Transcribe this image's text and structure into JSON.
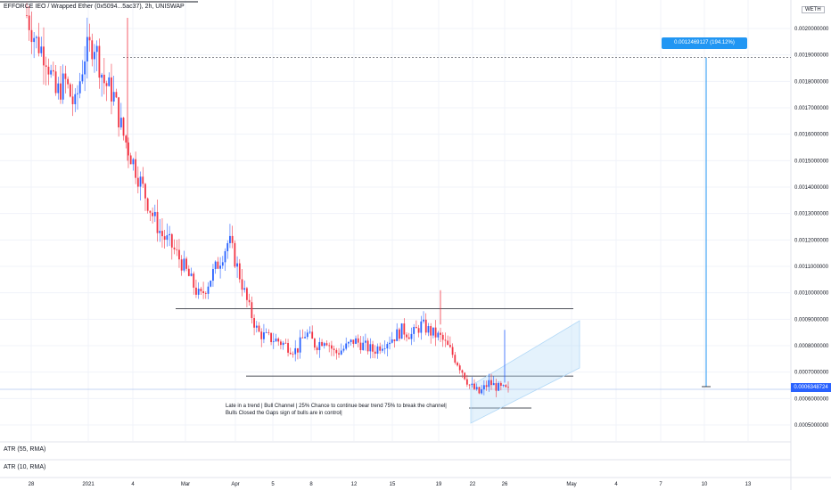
{
  "header": {
    "title": "EFFORCE IEO / Wrapped Ether (0x5094...5ac37), 2h, UNISWAP"
  },
  "price_axis": {
    "currency_badge": "WETH",
    "ticks": [
      "0.0020000000",
      "0.0019000000",
      "0.0018000000",
      "0.0017000000",
      "0.0016000000",
      "0.0015000000",
      "0.0014000000",
      "0.0013000000",
      "0.0012000000",
      "0.0011000000",
      "0.0010000000",
      "0.0009000000",
      "0.0008000000",
      "0.0007000000",
      "0.0006000000",
      "0.0005000000"
    ]
  },
  "time_axis": {
    "ticks": [
      "28",
      "2021",
      "4",
      "Mar",
      "Apr",
      "5",
      "8",
      "12",
      "15",
      "19",
      "22",
      "26",
      "May",
      "4",
      "7",
      "10",
      "13"
    ]
  },
  "indicators": {
    "atr_1": "ATR (55, RMA)",
    "atr_2": "ATR (10, RMA)"
  },
  "last_price": {
    "label": "0.0006348724"
  },
  "measure": {
    "label": "0.0012469127 (194.12%) 12469127"
  },
  "annotation": {
    "line1": "Late in a trend | Bull Channel | 25% Chance to continue bear trend 75% to break the channel|",
    "line2": "Bulls Closed the Gaps sign of bulls are in control|"
  },
  "colors": {
    "up": "#2962ff",
    "down": "#f23645",
    "grid": "#f0f3fa",
    "channel": "#b3d9f7",
    "last_price": "#2962ff"
  },
  "chart_data": {
    "type": "candlestick",
    "title": "EFFORCE IEO / Wrapped Ether (0x5094...5ac37), 2h, UNISWAP",
    "y_unit": "WETH",
    "ylim": [
      0.00045,
      0.0021
    ],
    "x_ticks": [
      "28",
      "2021",
      "4",
      "Mar",
      "Apr",
      "5",
      "8",
      "12",
      "15",
      "19",
      "22",
      "26",
      "May",
      "4",
      "7",
      "10",
      "13"
    ],
    "last_price": 0.0006348724,
    "support": 0.000685,
    "resistance": 0.00094,
    "measured_move": {
      "value": 0.0012469127,
      "percent": "194.12%"
    },
    "approx_close_path": [
      0.00205,
      0.00195,
      0.0019,
      0.00175,
      0.0018,
      0.0017,
      0.0019,
      0.00195,
      0.0018,
      0.00175,
      0.0016,
      0.0015,
      0.0014,
      0.0013,
      0.00122,
      0.00118,
      0.00112,
      0.00105,
      0.00098,
      0.00105,
      0.00112,
      0.0012,
      0.00108,
      0.00095,
      0.00085,
      0.00083,
      0.00082,
      0.0008,
      0.00078,
      0.00085,
      0.0008,
      0.00083,
      0.00077,
      0.00079,
      0.00082,
      0.0008,
      0.00078,
      0.00081,
      0.00083,
      0.00086,
      0.00084,
      0.00088,
      0.00085,
      0.00083,
      0.00078,
      0.00072,
      0.00065,
      0.00062,
      0.00066,
      0.00064,
      0.00063
    ]
  }
}
